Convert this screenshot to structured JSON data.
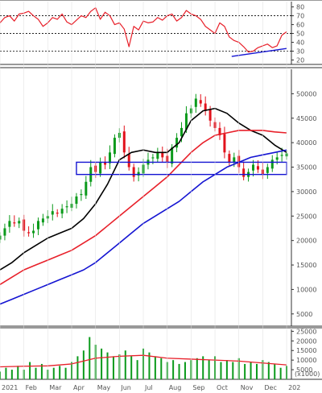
{
  "chart_data": [
    {
      "panel": "rsi",
      "type": "line",
      "yticks": [
        "80",
        "70",
        "60",
        "50",
        "40",
        "30",
        "20"
      ],
      "ylim": [
        15,
        86
      ],
      "levels": [
        70,
        50,
        30
      ],
      "x_months": 12.2,
      "series": [
        {
          "color": "#e8202a",
          "x": [
            0.0,
            0.2,
            0.4,
            0.6,
            0.8,
            1.0,
            1.2,
            1.4,
            1.6,
            1.8,
            2.0,
            2.2,
            2.4,
            2.6,
            2.8,
            3.0,
            3.2,
            3.4,
            3.6,
            3.8,
            4.0,
            4.2,
            4.4,
            4.6,
            4.8,
            5.0,
            5.2,
            5.4,
            5.6,
            5.8,
            6.0,
            6.2,
            6.4,
            6.6,
            6.8,
            7.0,
            7.2,
            7.4,
            7.6,
            7.8,
            8.0,
            8.2,
            8.4,
            8.6,
            8.8,
            9.0,
            9.2,
            9.4,
            9.6,
            9.8,
            10.0,
            10.2,
            10.4,
            10.6,
            10.8,
            11.0,
            11.2,
            11.4,
            11.6,
            11.8,
            12.0
          ],
          "values": [
            62,
            68,
            70,
            64,
            72,
            73,
            75,
            70,
            66,
            58,
            62,
            68,
            66,
            72,
            63,
            60,
            65,
            70,
            68,
            75,
            79,
            66,
            74,
            70,
            60,
            62,
            55,
            35,
            58,
            54,
            64,
            62,
            63,
            68,
            65,
            70,
            72,
            64,
            68,
            76,
            72,
            70,
            66,
            58,
            54,
            50,
            62,
            58,
            46,
            42,
            40,
            35,
            29,
            30,
            34,
            36,
            38,
            34,
            36,
            48,
            52
          ]
        }
      ],
      "trendline": {
        "color": "#1414d2",
        "x": [
          9.7,
          12.0
        ],
        "values": [
          24,
          33
        ]
      }
    },
    {
      "panel": "price",
      "type": "candlestick",
      "yticks": [
        "50000",
        "45000",
        "40000",
        "35000",
        "30000",
        "25000",
        "20000",
        "15000",
        "10000",
        "5000"
      ],
      "ylim": [
        2500,
        55000
      ],
      "x_months": 12.2,
      "candles": {
        "up_color": "#0b9a1b",
        "down_color": "#e2121c",
        "x": [
          0.0,
          0.2,
          0.4,
          0.6,
          0.8,
          1.0,
          1.2,
          1.4,
          1.6,
          1.8,
          2.0,
          2.2,
          2.4,
          2.6,
          2.8,
          3.0,
          3.2,
          3.4,
          3.6,
          3.8,
          4.0,
          4.2,
          4.4,
          4.6,
          4.8,
          5.0,
          5.2,
          5.4,
          5.6,
          5.8,
          6.0,
          6.2,
          6.4,
          6.6,
          6.8,
          7.0,
          7.2,
          7.4,
          7.6,
          7.8,
          8.0,
          8.2,
          8.4,
          8.6,
          8.8,
          9.0,
          9.2,
          9.4,
          9.6,
          9.8,
          10.0,
          10.2,
          10.4,
          10.6,
          10.8,
          11.0,
          11.2,
          11.4,
          11.6,
          11.8,
          12.0
        ],
        "close": [
          21000,
          22500,
          24000,
          23500,
          24000,
          22000,
          21500,
          22000,
          24000,
          24500,
          25000,
          26000,
          25500,
          26500,
          27000,
          27500,
          29000,
          29500,
          32000,
          35000,
          34000,
          36000,
          35500,
          38000,
          41000,
          42000,
          38000,
          35000,
          33000,
          34000,
          35500,
          36500,
          37000,
          38000,
          37000,
          36000,
          39000,
          41000,
          43000,
          46000,
          47000,
          49000,
          48000,
          46500,
          44500,
          43000,
          41500,
          38000,
          36000,
          37000,
          35000,
          33000,
          34000,
          35500,
          34500,
          33500,
          35000,
          36500,
          37000,
          37500,
          37800
        ]
      },
      "series": [
        {
          "name": "",
          "color": "#000000",
          "x": [
            0.0,
            0.5,
            1.0,
            1.5,
            2.0,
            2.5,
            3.0,
            3.5,
            4.0,
            4.5,
            5.0,
            5.5,
            6.0,
            6.5,
            7.0,
            7.5,
            8.0,
            8.5,
            9.0,
            9.5,
            10.0,
            10.5,
            11.0,
            11.5,
            12.0
          ],
          "values": [
            14000,
            15500,
            17500,
            19000,
            20500,
            21500,
            22500,
            24500,
            27500,
            31500,
            36500,
            38000,
            38500,
            38000,
            38000,
            40000,
            44500,
            46500,
            47000,
            46000,
            44000,
            42500,
            41500,
            39500,
            38000
          ]
        },
        {
          "name": "",
          "color": "#e8202a",
          "x": [
            0.0,
            0.5,
            1.0,
            1.5,
            2.0,
            2.5,
            3.0,
            3.5,
            4.0,
            4.5,
            5.0,
            5.5,
            6.0,
            6.5,
            7.0,
            7.5,
            8.0,
            8.5,
            9.0,
            9.5,
            10.0,
            10.5,
            11.0,
            11.5,
            12.0
          ],
          "values": [
            11000,
            12500,
            14000,
            15000,
            16000,
            17000,
            18000,
            19500,
            21000,
            23000,
            25000,
            27000,
            29000,
            31000,
            33000,
            35500,
            38000,
            40000,
            41500,
            42000,
            42500,
            42500,
            42500,
            42200,
            42000
          ]
        },
        {
          "name": "",
          "color": "#1414d2",
          "x": [
            0.0,
            0.5,
            1.0,
            1.5,
            2.0,
            2.5,
            3.0,
            3.5,
            4.0,
            4.5,
            5.0,
            5.5,
            6.0,
            6.5,
            7.0,
            7.5,
            8.0,
            8.5,
            9.0,
            9.5,
            10.0,
            10.5,
            11.0,
            11.5,
            12.0
          ],
          "values": [
            7000,
            8000,
            9000,
            10000,
            11000,
            12000,
            13000,
            14000,
            15500,
            17500,
            19500,
            21500,
            23500,
            25000,
            26500,
            28000,
            30000,
            32000,
            33500,
            35000,
            36000,
            37000,
            37500,
            38000,
            38500
          ]
        }
      ],
      "zone": {
        "color": "#1414d2",
        "x": [
          3.2,
          12.0
        ],
        "low": 33500,
        "high": 36000
      }
    },
    {
      "panel": "volume",
      "type": "bar",
      "yticks": [
        "25000",
        "20000",
        "15000",
        "10000",
        "5000"
      ],
      "ylim": [
        0,
        26000
      ],
      "unit_label": "(x1000)",
      "x_months": 12.2,
      "bar_color": "#0b9a1b",
      "x": [
        0.0,
        0.25,
        0.5,
        0.75,
        1.0,
        1.25,
        1.5,
        1.75,
        2.0,
        2.25,
        2.5,
        2.75,
        3.0,
        3.25,
        3.5,
        3.75,
        4.0,
        4.25,
        4.5,
        4.75,
        5.0,
        5.25,
        5.5,
        5.75,
        6.0,
        6.25,
        6.5,
        6.75,
        7.0,
        7.25,
        7.5,
        7.75,
        8.0,
        8.25,
        8.5,
        8.75,
        9.0,
        9.25,
        9.5,
        9.75,
        10.0,
        10.25,
        10.5,
        10.75,
        11.0,
        11.25,
        11.5,
        11.75,
        12.0
      ],
      "values": [
        4000,
        6000,
        5000,
        7000,
        5000,
        9000,
        6000,
        8000,
        5000,
        6000,
        7000,
        6000,
        9000,
        12000,
        15000,
        22000,
        18000,
        16000,
        14000,
        12000,
        13000,
        15000,
        12000,
        10000,
        16000,
        14000,
        12000,
        11000,
        9000,
        10000,
        8000,
        9000,
        10000,
        11000,
        12000,
        10000,
        12000,
        9000,
        10000,
        9000,
        11000,
        8000,
        9000,
        8000,
        10000,
        9000,
        8000,
        6000,
        7000
      ],
      "ma": {
        "color": "#e8202a",
        "x": [
          0.0,
          1.0,
          2.0,
          3.0,
          4.0,
          5.0,
          6.0,
          7.0,
          8.0,
          9.0,
          10.0,
          11.0,
          12.0
        ],
        "values": [
          6500,
          6800,
          7000,
          8000,
          11000,
          12000,
          12500,
          11000,
          10500,
          10000,
          9500,
          8500,
          7500
        ]
      }
    }
  ],
  "time_axis": {
    "labels": [
      "2021",
      "Feb",
      "Mar",
      "Apr",
      "May",
      "Jun",
      "Jul",
      "Aug",
      "Sep",
      "Oct",
      "Nov",
      "Dec",
      "202"
    ],
    "x": [
      0,
      1,
      2,
      3,
      4,
      5,
      6,
      7,
      8,
      9,
      10,
      11,
      12
    ]
  }
}
